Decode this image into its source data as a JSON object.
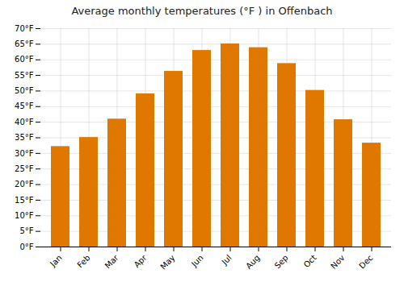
{
  "chart_data": {
    "type": "bar",
    "title": "Average monthly temperatures (°F ) in Offenbach",
    "categories": [
      "Jan",
      "Feb",
      "Mar",
      "Apr",
      "May",
      "Jun",
      "Jul",
      "Aug",
      "Sep",
      "Oct",
      "Nov",
      "Dec"
    ],
    "values": [
      32.2,
      35.1,
      41.0,
      49.1,
      56.3,
      63.0,
      65.1,
      63.9,
      58.8,
      50.2,
      40.8,
      33.3
    ],
    "color": "#E07800",
    "ylim": [
      0,
      70
    ],
    "yticks": [
      {
        "value": 0,
        "label": "0°F"
      },
      {
        "value": 5,
        "label": "5°F"
      },
      {
        "value": 10,
        "label": "10°F"
      },
      {
        "value": 15,
        "label": "15°F"
      },
      {
        "value": 20,
        "label": "20°F"
      },
      {
        "value": 25,
        "label": "25°F"
      },
      {
        "value": 30,
        "label": "30°F"
      },
      {
        "value": 35,
        "label": "35°F"
      },
      {
        "value": 40,
        "label": "40°F"
      },
      {
        "value": 45,
        "label": "45°F"
      },
      {
        "value": 50,
        "label": "50°F"
      },
      {
        "value": 55,
        "label": "55°F"
      },
      {
        "value": 60,
        "label": "60°F"
      },
      {
        "value": 65,
        "label": "65°F"
      },
      {
        "value": 70,
        "label": "70°F"
      }
    ],
    "grid": true
  }
}
